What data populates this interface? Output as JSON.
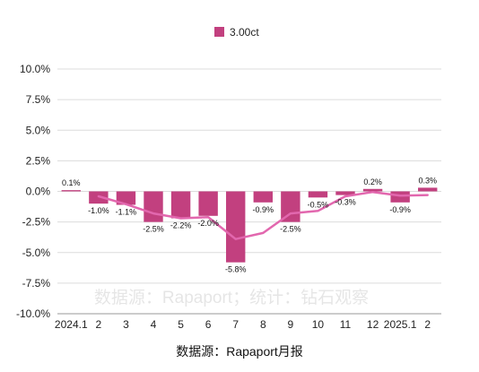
{
  "chart_data": {
    "type": "bar",
    "categories": [
      "2024.1",
      "2",
      "3",
      "4",
      "5",
      "6",
      "7",
      "8",
      "9",
      "10",
      "11",
      "12",
      "2025.1",
      "2"
    ],
    "series": [
      {
        "name": "3.00ct",
        "values": [
          0.1,
          -1.0,
          -1.1,
          -2.5,
          -2.2,
          -2.0,
          -5.8,
          -0.9,
          -2.5,
          -0.5,
          -0.3,
          0.2,
          -0.9,
          0.3
        ],
        "labels": [
          "0.1%",
          "-1.0%",
          "-1.1%",
          "-2.5%",
          "-2.2%",
          "-2.0%",
          "-5.8%",
          "-0.9%",
          "-2.5%",
          "-0.5%",
          "-0.3%",
          "0.2%",
          "-0.9%",
          "0.3%"
        ],
        "color": "#C2407F"
      }
    ],
    "trendline": {
      "color": "#E267AE",
      "values": [
        null,
        -0.4,
        -1.05,
        -1.8,
        -2.2,
        -2.1,
        -3.9,
        -3.4,
        -1.8,
        -1.6,
        -0.4,
        -0.05,
        -0.35,
        -0.3
      ]
    },
    "yticks": [
      "10.0%",
      "7.5%",
      "5.0%",
      "2.5%",
      "0.0%",
      "-2.5%",
      "-5.0%",
      "-7.5%",
      "-10.0%"
    ],
    "ylim": [
      -10,
      10
    ],
    "ystep": 2.5,
    "grid": true,
    "legend_position": "top-center",
    "watermark": "数据源：Rapaport；统计：钻石观察",
    "source": "数据源：Rapaport月报"
  }
}
